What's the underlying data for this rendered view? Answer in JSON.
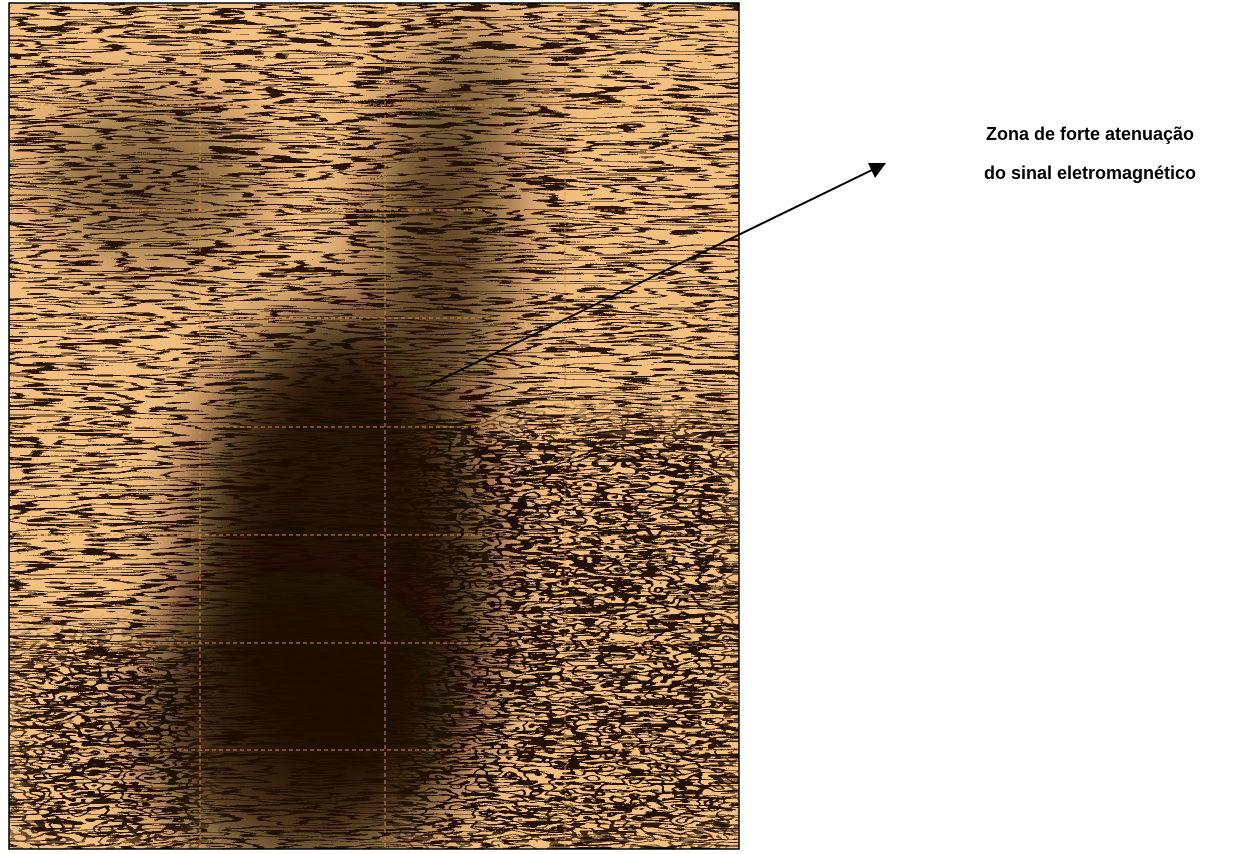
{
  "annotation": {
    "lines": [
      "Zona de forte atenuação",
      "do sinal eletromagnético"
    ]
  }
}
